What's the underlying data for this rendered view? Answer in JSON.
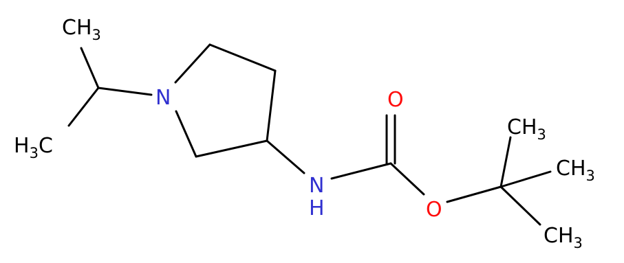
{
  "atoms": [
    {
      "main": "CH",
      "sub": "3"
    },
    {
      "pre": "H",
      "sub": "3",
      "main": "C"
    },
    {
      "main": "N"
    },
    {
      "main": "N",
      "below": "H"
    },
    {
      "main": "O"
    },
    {
      "main": "O"
    },
    {
      "main": "CH",
      "sub": "3"
    },
    {
      "main": "CH",
      "sub": "3"
    },
    {
      "main": "CH",
      "sub": "3"
    }
  ]
}
